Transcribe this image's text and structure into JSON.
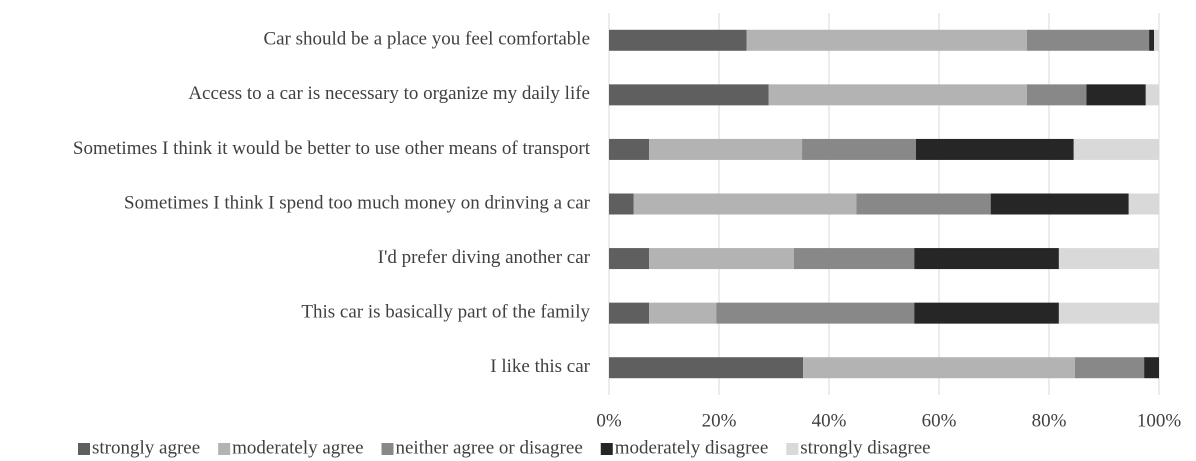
{
  "chart_data": {
    "type": "stacked_barh",
    "categories": [
      "Car should be a place you feel comfortable",
      "Access to a car is necessary to organize my daily life",
      "Sometimes I think it would be better to use other means of transport",
      "Sometimes I think I spend too much money on drinving a car",
      "I'd prefer diving another car",
      "This car is basically part of the family",
      "I like this car"
    ],
    "series": [
      {
        "name": "strongly agree",
        "color": "#5f5f5f",
        "values": [
          25,
          29,
          7.3,
          4.5,
          7.3,
          7.3,
          35.3
        ]
      },
      {
        "name": "moderately agree",
        "color": "#b3b3b3",
        "values": [
          51,
          47,
          27.8,
          40.5,
          26.3,
          12.2,
          49.4
        ]
      },
      {
        "name": "neither agree or disagree",
        "color": "#888888",
        "values": [
          22.2,
          10.8,
          20.7,
          24.4,
          21.9,
          36,
          12.6
        ]
      },
      {
        "name": "moderately disagree",
        "color": "#262626",
        "values": [
          0.9,
          10.8,
          28.7,
          25.1,
          26.3,
          26.3,
          2.7
        ]
      },
      {
        "name": "strongly disagree",
        "color": "#d9d9d9",
        "values": [
          0.9,
          2.4,
          15.5,
          5.5,
          18.2,
          18.2,
          0
        ]
      }
    ],
    "xlim": [
      0,
      100
    ],
    "xticks": [
      {
        "value": 0,
        "label": "0%"
      },
      {
        "value": 20,
        "label": "20%"
      },
      {
        "value": 40,
        "label": "40%"
      },
      {
        "value": 60,
        "label": "60%"
      },
      {
        "value": 80,
        "label": "80%"
      },
      {
        "value": 100,
        "label": "100%"
      }
    ],
    "grid": true,
    "legend": "bottom"
  }
}
